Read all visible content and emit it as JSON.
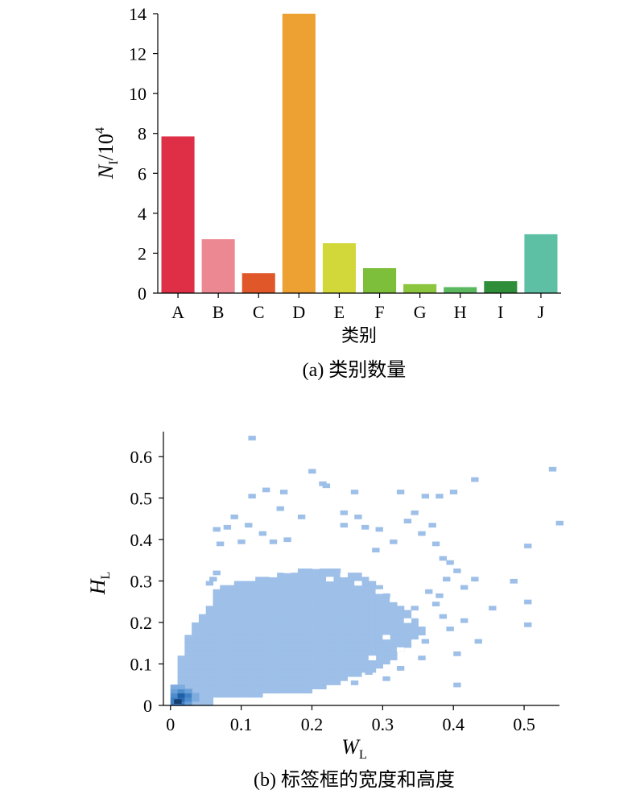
{
  "panel_a": {
    "caption": "(a) 类别数量",
    "ylabel_main": "N",
    "ylabel_sub": "I",
    "ylabel_suffix": "/10",
    "ylabel_sup": "4",
    "xlabel": "类别"
  },
  "panel_b": {
    "caption": "(b) 标签框的宽度和高度",
    "xlabel_main": "W",
    "xlabel_sub": "L",
    "ylabel_main": "H",
    "ylabel_sub": "L"
  },
  "chart_data": [
    {
      "type": "bar",
      "categories": [
        "A",
        "B",
        "C",
        "D",
        "E",
        "F",
        "G",
        "H",
        "I",
        "J"
      ],
      "values": [
        7.85,
        2.7,
        1.0,
        14.0,
        2.5,
        1.25,
        0.45,
        0.3,
        0.6,
        2.95
      ],
      "colors": [
        "#de2f46",
        "#ec8892",
        "#e0582a",
        "#eca132",
        "#d2d83a",
        "#7dbf3a",
        "#8cc63f",
        "#5ab85e",
        "#2f8e3a",
        "#5dbfa4"
      ],
      "xlabel": "类别",
      "ylabel": "NI/10^4",
      "ylim": [
        0,
        14
      ],
      "yticks": [
        0,
        2,
        4,
        6,
        8,
        10,
        12,
        14
      ]
    },
    {
      "type": "heatmap",
      "xlabel": "WL",
      "ylabel": "HL",
      "xlim": [
        -0.01,
        0.55
      ],
      "ylim": [
        0,
        0.66
      ],
      "xticks": [
        0,
        0.1,
        0.2,
        0.3,
        0.4,
        0.5
      ],
      "yticks": [
        0,
        0.1,
        0.2,
        0.3,
        0.4,
        0.5,
        0.6
      ],
      "color": "#9dbfe8",
      "dense_color": "#1f5fa6",
      "density_peak": [
        0.01,
        0.02
      ],
      "outliers": [
        [
          0.11,
          0.64
        ],
        [
          0.195,
          0.56
        ],
        [
          0.21,
          0.53
        ],
        [
          0.215,
          0.525
        ],
        [
          0.13,
          0.515
        ],
        [
          0.155,
          0.51
        ],
        [
          0.255,
          0.51
        ],
        [
          0.32,
          0.51
        ],
        [
          0.355,
          0.5
        ],
        [
          0.375,
          0.5
        ],
        [
          0.395,
          0.51
        ],
        [
          0.425,
          0.54
        ],
        [
          0.535,
          0.565
        ],
        [
          0.545,
          0.435
        ],
        [
          0.5,
          0.38
        ],
        [
          0.11,
          0.5
        ],
        [
          0.24,
          0.46
        ],
        [
          0.26,
          0.45
        ],
        [
          0.085,
          0.45
        ],
        [
          0.18,
          0.45
        ],
        [
          0.15,
          0.47
        ],
        [
          0.33,
          0.44
        ],
        [
          0.24,
          0.43
        ],
        [
          0.27,
          0.425
        ],
        [
          0.29,
          0.42
        ],
        [
          0.34,
          0.46
        ],
        [
          0.35,
          0.41
        ],
        [
          0.365,
          0.43
        ],
        [
          0.31,
          0.39
        ],
        [
          0.285,
          0.37
        ],
        [
          0.37,
          0.385
        ],
        [
          0.06,
          0.42
        ],
        [
          0.075,
          0.425
        ],
        [
          0.105,
          0.43
        ],
        [
          0.125,
          0.41
        ],
        [
          0.065,
          0.385
        ],
        [
          0.095,
          0.39
        ],
        [
          0.14,
          0.39
        ],
        [
          0.16,
          0.395
        ],
        [
          0.38,
          0.35
        ],
        [
          0.39,
          0.34
        ],
        [
          0.4,
          0.32
        ],
        [
          0.385,
          0.3
        ],
        [
          0.48,
          0.295
        ],
        [
          0.5,
          0.245
        ],
        [
          0.5,
          0.19
        ],
        [
          0.45,
          0.23
        ],
        [
          0.425,
          0.3
        ],
        [
          0.41,
          0.28
        ],
        [
          0.36,
          0.27
        ],
        [
          0.375,
          0.26
        ],
        [
          0.37,
          0.24
        ],
        [
          0.34,
          0.23
        ],
        [
          0.38,
          0.21
        ],
        [
          0.41,
          0.2
        ],
        [
          0.39,
          0.18
        ],
        [
          0.43,
          0.15
        ],
        [
          0.4,
          0.12
        ],
        [
          0.355,
          0.15
        ],
        [
          0.35,
          0.11
        ],
        [
          0.32,
          0.085
        ],
        [
          0.275,
          0.075
        ],
        [
          0.3,
          0.06
        ],
        [
          0.255,
          0.05
        ],
        [
          0.4,
          0.045
        ],
        [
          0.06,
          0.315
        ],
        [
          0.05,
          0.29
        ],
        [
          0.055,
          0.3
        ]
      ]
    }
  ]
}
